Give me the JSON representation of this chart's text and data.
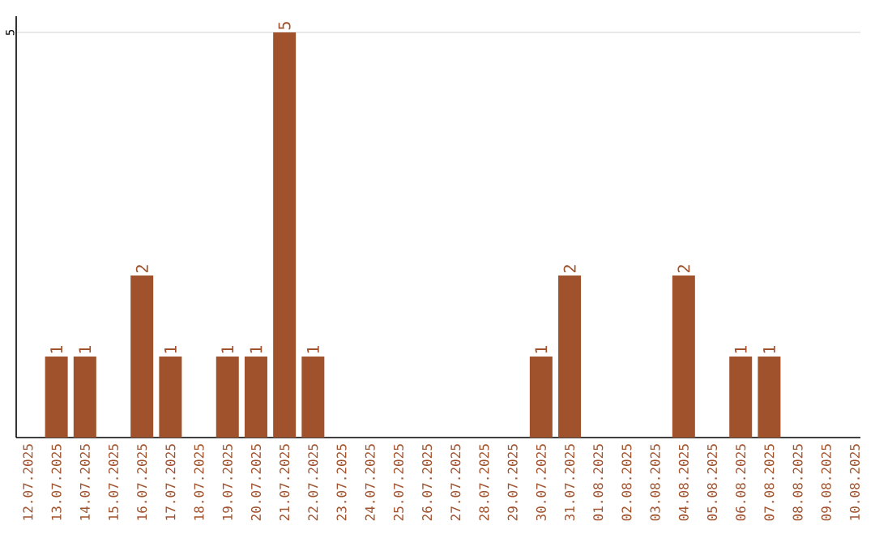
{
  "chart_data": {
    "type": "bar",
    "categories": [
      "12.07.2025",
      "13.07.2025",
      "14.07.2025",
      "15.07.2025",
      "16.07.2025",
      "17.07.2025",
      "18.07.2025",
      "19.07.2025",
      "20.07.2025",
      "21.07.2025",
      "22.07.2025",
      "23.07.2025",
      "24.07.2025",
      "25.07.2025",
      "26.07.2025",
      "27.07.2025",
      "28.07.2025",
      "29.07.2025",
      "30.07.2025",
      "31.07.2025",
      "01.08.2025",
      "02.08.2025",
      "03.08.2025",
      "04.08.2025",
      "05.08.2025",
      "06.08.2025",
      "07.08.2025",
      "08.08.2025",
      "09.08.2025",
      "10.08.2025"
    ],
    "values": [
      0,
      1,
      1,
      0,
      2,
      1,
      0,
      1,
      1,
      5,
      1,
      0,
      0,
      0,
      0,
      0,
      0,
      0,
      1,
      2,
      0,
      0,
      0,
      2,
      0,
      1,
      1,
      0,
      0,
      0
    ],
    "value_labels": [
      null,
      "1",
      "1",
      null,
      "2",
      "1",
      null,
      "1",
      "1",
      "5",
      "1",
      null,
      null,
      null,
      null,
      null,
      null,
      null,
      "1",
      "2",
      null,
      null,
      null,
      "2",
      null,
      "1",
      "1",
      null,
      null,
      null
    ],
    "color": "#a0522d",
    "ylim": [
      0,
      5.2
    ],
    "yticks": [
      5
    ],
    "grid": "y"
  }
}
